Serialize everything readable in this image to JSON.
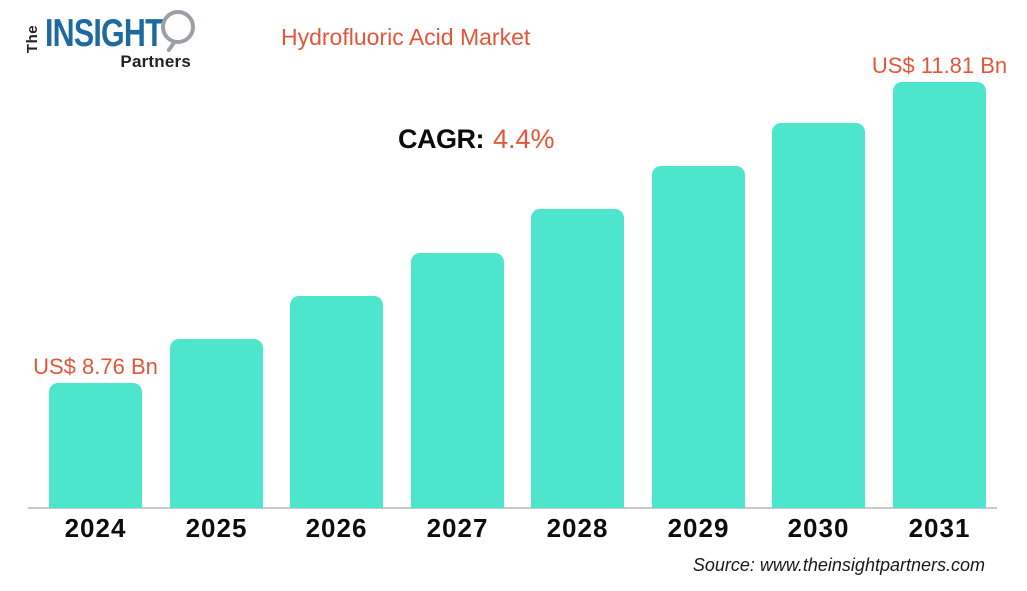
{
  "logo": {
    "the": "The",
    "insight": "INSIGHT",
    "partners": "Partners"
  },
  "header": {
    "title": "Hydrofluoric Acid Market"
  },
  "cagr": {
    "label": "CAGR:",
    "value": "4.4%"
  },
  "chart_data": {
    "type": "bar",
    "title": "Hydrofluoric Acid Market",
    "categories": [
      "2024",
      "2025",
      "2026",
      "2027",
      "2028",
      "2029",
      "2030",
      "2031"
    ],
    "values": [
      8.76,
      9.15,
      9.55,
      9.97,
      10.41,
      10.86,
      11.34,
      11.81
    ],
    "unit": "US$ Bn",
    "first_bar_label": "US$ 8.76 Bn",
    "last_bar_label": "US$ 11.81 Bn",
    "cagr_percent": 4.4,
    "xlabel": "",
    "ylabel": "",
    "legend": "none",
    "gridlines": false,
    "y_axis_visible": false,
    "baseline_truncated": true,
    "bar_color": "#4de5cc",
    "annotation_color": "#e2563a"
  },
  "footer": {
    "source": "Source: www.theinsightpartners.com"
  },
  "colors": {
    "accent_orange": "#e2563a",
    "logo_blue": "#1c6a9e",
    "bar_teal": "#4de5cc",
    "axis_gray": "#c9c9c9"
  }
}
